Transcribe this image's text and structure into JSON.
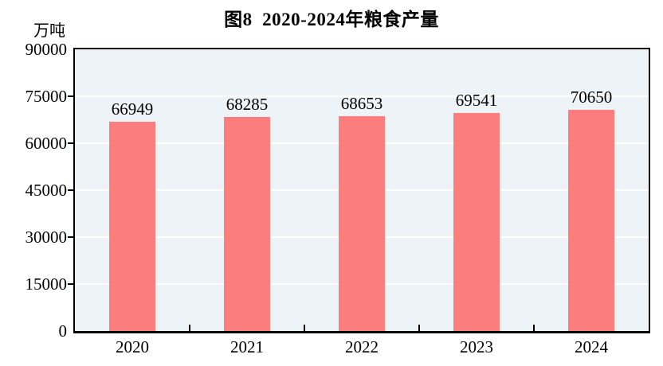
{
  "chart_data": {
    "type": "bar",
    "title": "图8  2020-2024年粮食产量",
    "unit_label": "万吨",
    "categories": [
      "2020",
      "2021",
      "2022",
      "2023",
      "2024"
    ],
    "values": [
      66949,
      68285,
      68653,
      69541,
      70650
    ],
    "xlabel": "",
    "ylabel": "万吨",
    "ylim": [
      0,
      90000
    ],
    "yticks": [
      0,
      15000,
      30000,
      45000,
      60000,
      75000,
      90000
    ],
    "grid": "horizontal white lines on light-blue plot background",
    "legend": "none",
    "colors": {
      "bar": "#FC7D7D",
      "plot_background": "#EEF3F7",
      "grid_line": "#FFFFFF",
      "axis": "#000000",
      "text": "#000000",
      "page_background": "#FFFFFF"
    }
  }
}
